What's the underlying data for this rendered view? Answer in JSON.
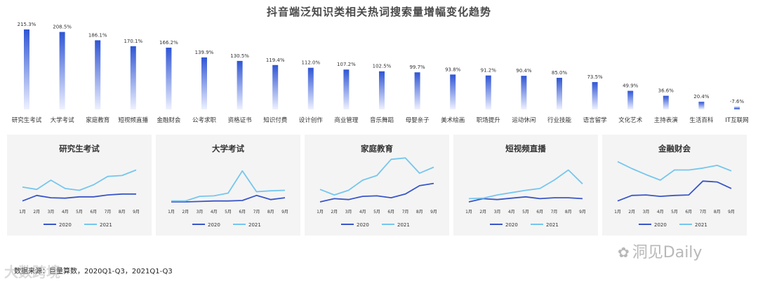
{
  "title": "抖音端泛知识类相关热词搜索量增幅变化趋势",
  "source": "数据来源：巨量算数，2020Q1-Q3，2021Q1-Q3",
  "watermark_right": "洞见Daily",
  "watermark_left": "大数跨境",
  "chart_data": [
    {
      "type": "bar",
      "title": "抖音端泛知识类相关热词搜索量增幅变化趋势",
      "categories": [
        "研究生考试",
        "大学考试",
        "家庭教育",
        "短视频直播",
        "金融财会",
        "公考求职",
        "资格证书",
        "知识付费",
        "设计创作",
        "商业管理",
        "音乐舞蹈",
        "母婴亲子",
        "美术绘画",
        "职场提升",
        "运动休闲",
        "行业技能",
        "语言留学",
        "文化艺术",
        "主持表演",
        "生活百科",
        "IT互联网"
      ],
      "values": [
        215.3,
        208.5,
        186.1,
        170.1,
        166.2,
        139.9,
        130.5,
        119.4,
        112.0,
        107.2,
        102.5,
        99.7,
        93.8,
        91.2,
        90.4,
        85.0,
        73.5,
        49.9,
        36.6,
        20.4,
        -7.6
      ],
      "labels": [
        "215.3%",
        "208.5%",
        "186.1%",
        "170.1%",
        "166.2%",
        "139.9%",
        "130.5%",
        "119.4%",
        "112.0%",
        "107.2%",
        "102.5%",
        "99.7%",
        "93.8%",
        "91.2%",
        "90.4%",
        "85.0%",
        "73.5%",
        "49.9%",
        "36.6%",
        "20.4%",
        "-7.6%"
      ],
      "colors": {
        "top": "#2f55d4",
        "bottom": "#eef1ff"
      }
    },
    {
      "type": "line",
      "title": "研究生考试",
      "categories": [
        "1月",
        "2月",
        "3月",
        "4月",
        "5月",
        "6月",
        "7月",
        "8月",
        "9月"
      ],
      "ylim": [
        0,
        100
      ],
      "series": [
        {
          "name": "2020",
          "values": [
            5,
            17,
            12,
            11,
            14,
            14,
            18,
            20,
            20
          ],
          "color": "#3a56c8"
        },
        {
          "name": "2021",
          "values": [
            35,
            30,
            50,
            32,
            28,
            40,
            58,
            60,
            72
          ],
          "color": "#76c6ee"
        }
      ]
    },
    {
      "type": "line",
      "title": "大学考试",
      "categories": [
        "1月",
        "2月",
        "3月",
        "4月",
        "5月",
        "6月",
        "7月",
        "8月",
        "9月"
      ],
      "ylim": [
        0,
        100
      ],
      "series": [
        {
          "name": "2020",
          "values": [
            3,
            3,
            4,
            5,
            5,
            6,
            17,
            8,
            12
          ],
          "color": "#3a56c8"
        },
        {
          "name": "2021",
          "values": [
            5,
            5,
            15,
            16,
            22,
            70,
            25,
            27,
            28
          ],
          "color": "#76c6ee"
        }
      ]
    },
    {
      "type": "line",
      "title": "家庭教育",
      "categories": [
        "1月",
        "2月",
        "3月",
        "4月",
        "5月",
        "6月",
        "7月",
        "8月",
        "9月"
      ],
      "ylim": [
        0,
        100
      ],
      "series": [
        {
          "name": "2020",
          "values": [
            3,
            10,
            8,
            15,
            16,
            12,
            20,
            38,
            43
          ],
          "color": "#3a56c8"
        },
        {
          "name": "2021",
          "values": [
            30,
            18,
            28,
            50,
            60,
            95,
            98,
            65,
            78
          ],
          "color": "#76c6ee"
        }
      ]
    },
    {
      "type": "line",
      "title": "短视频直播",
      "categories": [
        "1月",
        "2月",
        "3月",
        "4月",
        "5月",
        "6月",
        "7月",
        "8月",
        "9月"
      ],
      "ylim": [
        0,
        100
      ],
      "series": [
        {
          "name": "2020",
          "values": [
            3,
            10,
            8,
            11,
            14,
            10,
            12,
            12,
            10
          ],
          "color": "#3a56c8"
        },
        {
          "name": "2021",
          "values": [
            10,
            11,
            18,
            23,
            28,
            32,
            50,
            72,
            42
          ],
          "color": "#76c6ee"
        }
      ]
    },
    {
      "type": "line",
      "title": "金融财会",
      "categories": [
        "1月",
        "2月",
        "3月",
        "4月",
        "5月",
        "6月",
        "7月",
        "8月",
        "9月"
      ],
      "ylim": [
        0,
        100
      ],
      "series": [
        {
          "name": "2020",
          "values": [
            5,
            17,
            18,
            15,
            17,
            18,
            48,
            46,
            32
          ],
          "color": "#3a56c8"
        },
        {
          "name": "2021",
          "values": [
            90,
            75,
            62,
            50,
            72,
            72,
            76,
            82,
            70
          ],
          "color": "#76c6ee"
        }
      ]
    }
  ]
}
